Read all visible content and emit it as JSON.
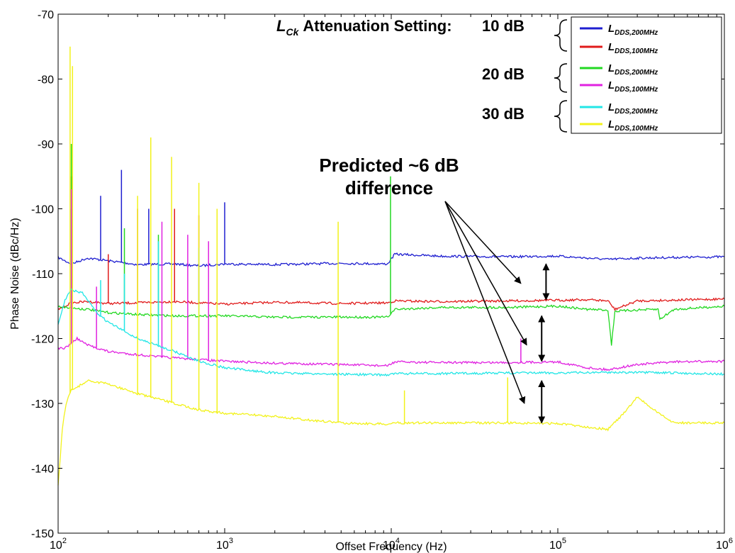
{
  "chart_data": {
    "type": "line",
    "xlabel": "Offset Frequency (Hz)",
    "ylabel": "Phase Noise (dBc/Hz)",
    "x_scale": "log",
    "xlim": [
      100,
      1000000
    ],
    "ylim": [
      -150,
      -70
    ],
    "x_ticks": [
      {
        "value": 100,
        "base": "10",
        "exp": "2"
      },
      {
        "value": 1000,
        "base": "10",
        "exp": "3"
      },
      {
        "value": 10000,
        "base": "10",
        "exp": "4"
      },
      {
        "value": 100000,
        "base": "10",
        "exp": "5"
      },
      {
        "value": 1000000,
        "base": "10",
        "exp": "6"
      }
    ],
    "y_ticks": [
      -70,
      -80,
      -90,
      -100,
      -110,
      -120,
      -130,
      -140,
      -150
    ],
    "grid": false,
    "legend_title": {
      "symbol": "L",
      "subscript": "Ck",
      "text": "Attenuation Setting:"
    },
    "legend_groups": [
      "10 dB",
      "20 dB",
      "30 dB"
    ],
    "series": [
      {
        "name": "L_DDS,200MHz",
        "label_main": "L",
        "label_sub": "DDS,200MHz",
        "color": "#1f1fd0",
        "x": [
          100,
          120,
          150,
          200,
          300,
          500,
          700,
          1000,
          2000,
          5000,
          9500,
          10500,
          20000,
          50000,
          90000,
          100000,
          200000,
          300000,
          500000,
          1000000
        ],
        "y": [
          -107.5,
          -108.5,
          -107.6,
          -108.0,
          -108.6,
          -108.5,
          -108.8,
          -108.5,
          -108.6,
          -108.4,
          -108.5,
          -107.0,
          -107.3,
          -107.4,
          -107.3,
          -107.3,
          -107.8,
          -107.6,
          -107.5,
          -107.4
        ],
        "spikes": [
          [
            120,
            -100
          ],
          [
            180,
            -98
          ],
          [
            240,
            -94
          ],
          [
            350,
            -100
          ],
          [
            1000,
            -99
          ]
        ]
      },
      {
        "name": "L_DDS,100MHz",
        "label_main": "L",
        "label_sub": "DDS,100MHz",
        "color": "#e01b1b",
        "x": [
          100,
          120,
          150,
          200,
          300,
          500,
          1000,
          2000,
          5000,
          9500,
          10500,
          20000,
          50000,
          100000,
          150000,
          200000,
          220000,
          300000,
          1000000
        ],
        "y": [
          -115.5,
          -114.5,
          -114.3,
          -114.6,
          -114.5,
          -114.3,
          -114.7,
          -114.4,
          -114.6,
          -114.5,
          -114.2,
          -114.3,
          -114.2,
          -114.1,
          -114.0,
          -114.2,
          -115.5,
          -114.2,
          -113.9
        ],
        "spikes": [
          [
            120,
            -95
          ],
          [
            200,
            -107
          ],
          [
            300,
            -100
          ],
          [
            500,
            -100
          ],
          [
            700,
            -101
          ],
          [
            900,
            -108
          ]
        ]
      },
      {
        "name": "L_DDS,200MHz",
        "label_main": "L",
        "label_sub": "DDS,200MHz",
        "color": "#22d822",
        "x": [
          100,
          120,
          150,
          200,
          300,
          500,
          1000,
          2000,
          5000,
          9500,
          10500,
          20000,
          50000,
          100000,
          150000,
          200000,
          210000,
          220000,
          300000,
          400000,
          410000,
          500000,
          1000000
        ],
        "y": [
          -115.0,
          -115.3,
          -115.5,
          -116.0,
          -116.3,
          -116.5,
          -116.5,
          -116.7,
          -116.7,
          -116.7,
          -115.5,
          -115.2,
          -115.2,
          -115.0,
          -115.5,
          -115.6,
          -121.0,
          -115.8,
          -115.6,
          -115.5,
          -117.0,
          -115.5,
          -115.0
        ],
        "spikes": [
          [
            120,
            -90
          ],
          [
            250,
            -103
          ],
          [
            400,
            -104
          ],
          [
            9900,
            -95
          ]
        ]
      },
      {
        "name": "L_DDS,100MHz",
        "label_main": "L",
        "label_sub": "DDS,100MHz",
        "color": "#e022e0",
        "x": [
          100,
          110,
          130,
          150,
          200,
          300,
          500,
          1000,
          2000,
          5000,
          9500,
          10500,
          20000,
          50000,
          100000,
          150000,
          200000,
          300000,
          500000,
          1000000
        ],
        "y": [
          -121.5,
          -121.5,
          -120.0,
          -121.0,
          -122.0,
          -122.5,
          -123.0,
          -123.5,
          -123.8,
          -124.0,
          -124.2,
          -123.6,
          -123.7,
          -123.7,
          -123.6,
          -124.5,
          -124.8,
          -124.0,
          -123.6,
          -123.5
        ],
        "spikes": [
          [
            120,
            -97
          ],
          [
            170,
            -112
          ],
          [
            420,
            -102
          ],
          [
            600,
            -104
          ],
          [
            800,
            -105
          ],
          [
            60000,
            -120
          ]
        ]
      },
      {
        "name": "L_DDS,200MHz",
        "label_main": "L",
        "label_sub": "DDS,200MHz",
        "color": "#22e6e6",
        "x": [
          100,
          110,
          120,
          140,
          170,
          200,
          300,
          500,
          700,
          1000,
          1500,
          2000,
          5000,
          9500,
          10500,
          20000,
          50000,
          100000,
          200000,
          500000,
          1000000
        ],
        "y": [
          -118.0,
          -114.0,
          -112.5,
          -113.0,
          -116.0,
          -117.5,
          -120.0,
          -122.0,
          -123.5,
          -124.5,
          -125.0,
          -125.3,
          -125.5,
          -125.6,
          -125.4,
          -125.4,
          -125.3,
          -125.3,
          -125.2,
          -125.3,
          -125.5
        ],
        "spikes": [
          [
            180,
            -111
          ],
          [
            250,
            -110
          ],
          [
            400,
            -105
          ],
          [
            700,
            -106
          ]
        ]
      },
      {
        "name": "L_DDS,100MHz",
        "label_main": "L",
        "label_sub": "DDS,100MHz",
        "color": "#f2f21a",
        "x": [
          100,
          102,
          106,
          110,
          115,
          120,
          130,
          150,
          200,
          300,
          500,
          700,
          1000,
          2000,
          3000,
          5000,
          9500,
          10500,
          20000,
          50000,
          100000,
          200000,
          250000,
          300000,
          400000,
          500000,
          700000,
          1000000
        ],
        "y": [
          -142.5,
          -140.0,
          -134.0,
          -131.0,
          -129.0,
          -128.0,
          -127.5,
          -126.5,
          -127.0,
          -128.5,
          -130.0,
          -131.0,
          -131.5,
          -132.0,
          -132.5,
          -133.0,
          -133.2,
          -133.0,
          -133.0,
          -133.0,
          -133.1,
          -134.0,
          -131.5,
          -129.0,
          -131.5,
          -133.0,
          -133.0,
          -133.0
        ],
        "spikes": [
          [
            118,
            -75
          ],
          [
            122,
            -78
          ],
          [
            300,
            -98
          ],
          [
            360,
            -89
          ],
          [
            480,
            -92
          ],
          [
            700,
            -96
          ],
          [
            900,
            -100
          ],
          [
            4800,
            -102
          ],
          [
            12000,
            -128
          ],
          [
            50000,
            -126
          ]
        ]
      }
    ],
    "annotation": {
      "line1": "Predicted ~6 dB",
      "line2": "difference"
    },
    "double_arrows": [
      {
        "x": 85000,
        "y_top": -108.5,
        "y_bottom": -114.0
      },
      {
        "x": 80000,
        "y_top": -116.5,
        "y_bottom": -123.5
      },
      {
        "x": 80000,
        "y_top": -126.5,
        "y_bottom": -133.0
      }
    ],
    "pointer_targets": [
      {
        "x": 60000,
        "y": -111.5
      },
      {
        "x": 65000,
        "y": -121.0
      },
      {
        "x": 63000,
        "y": -130.0
      }
    ]
  }
}
